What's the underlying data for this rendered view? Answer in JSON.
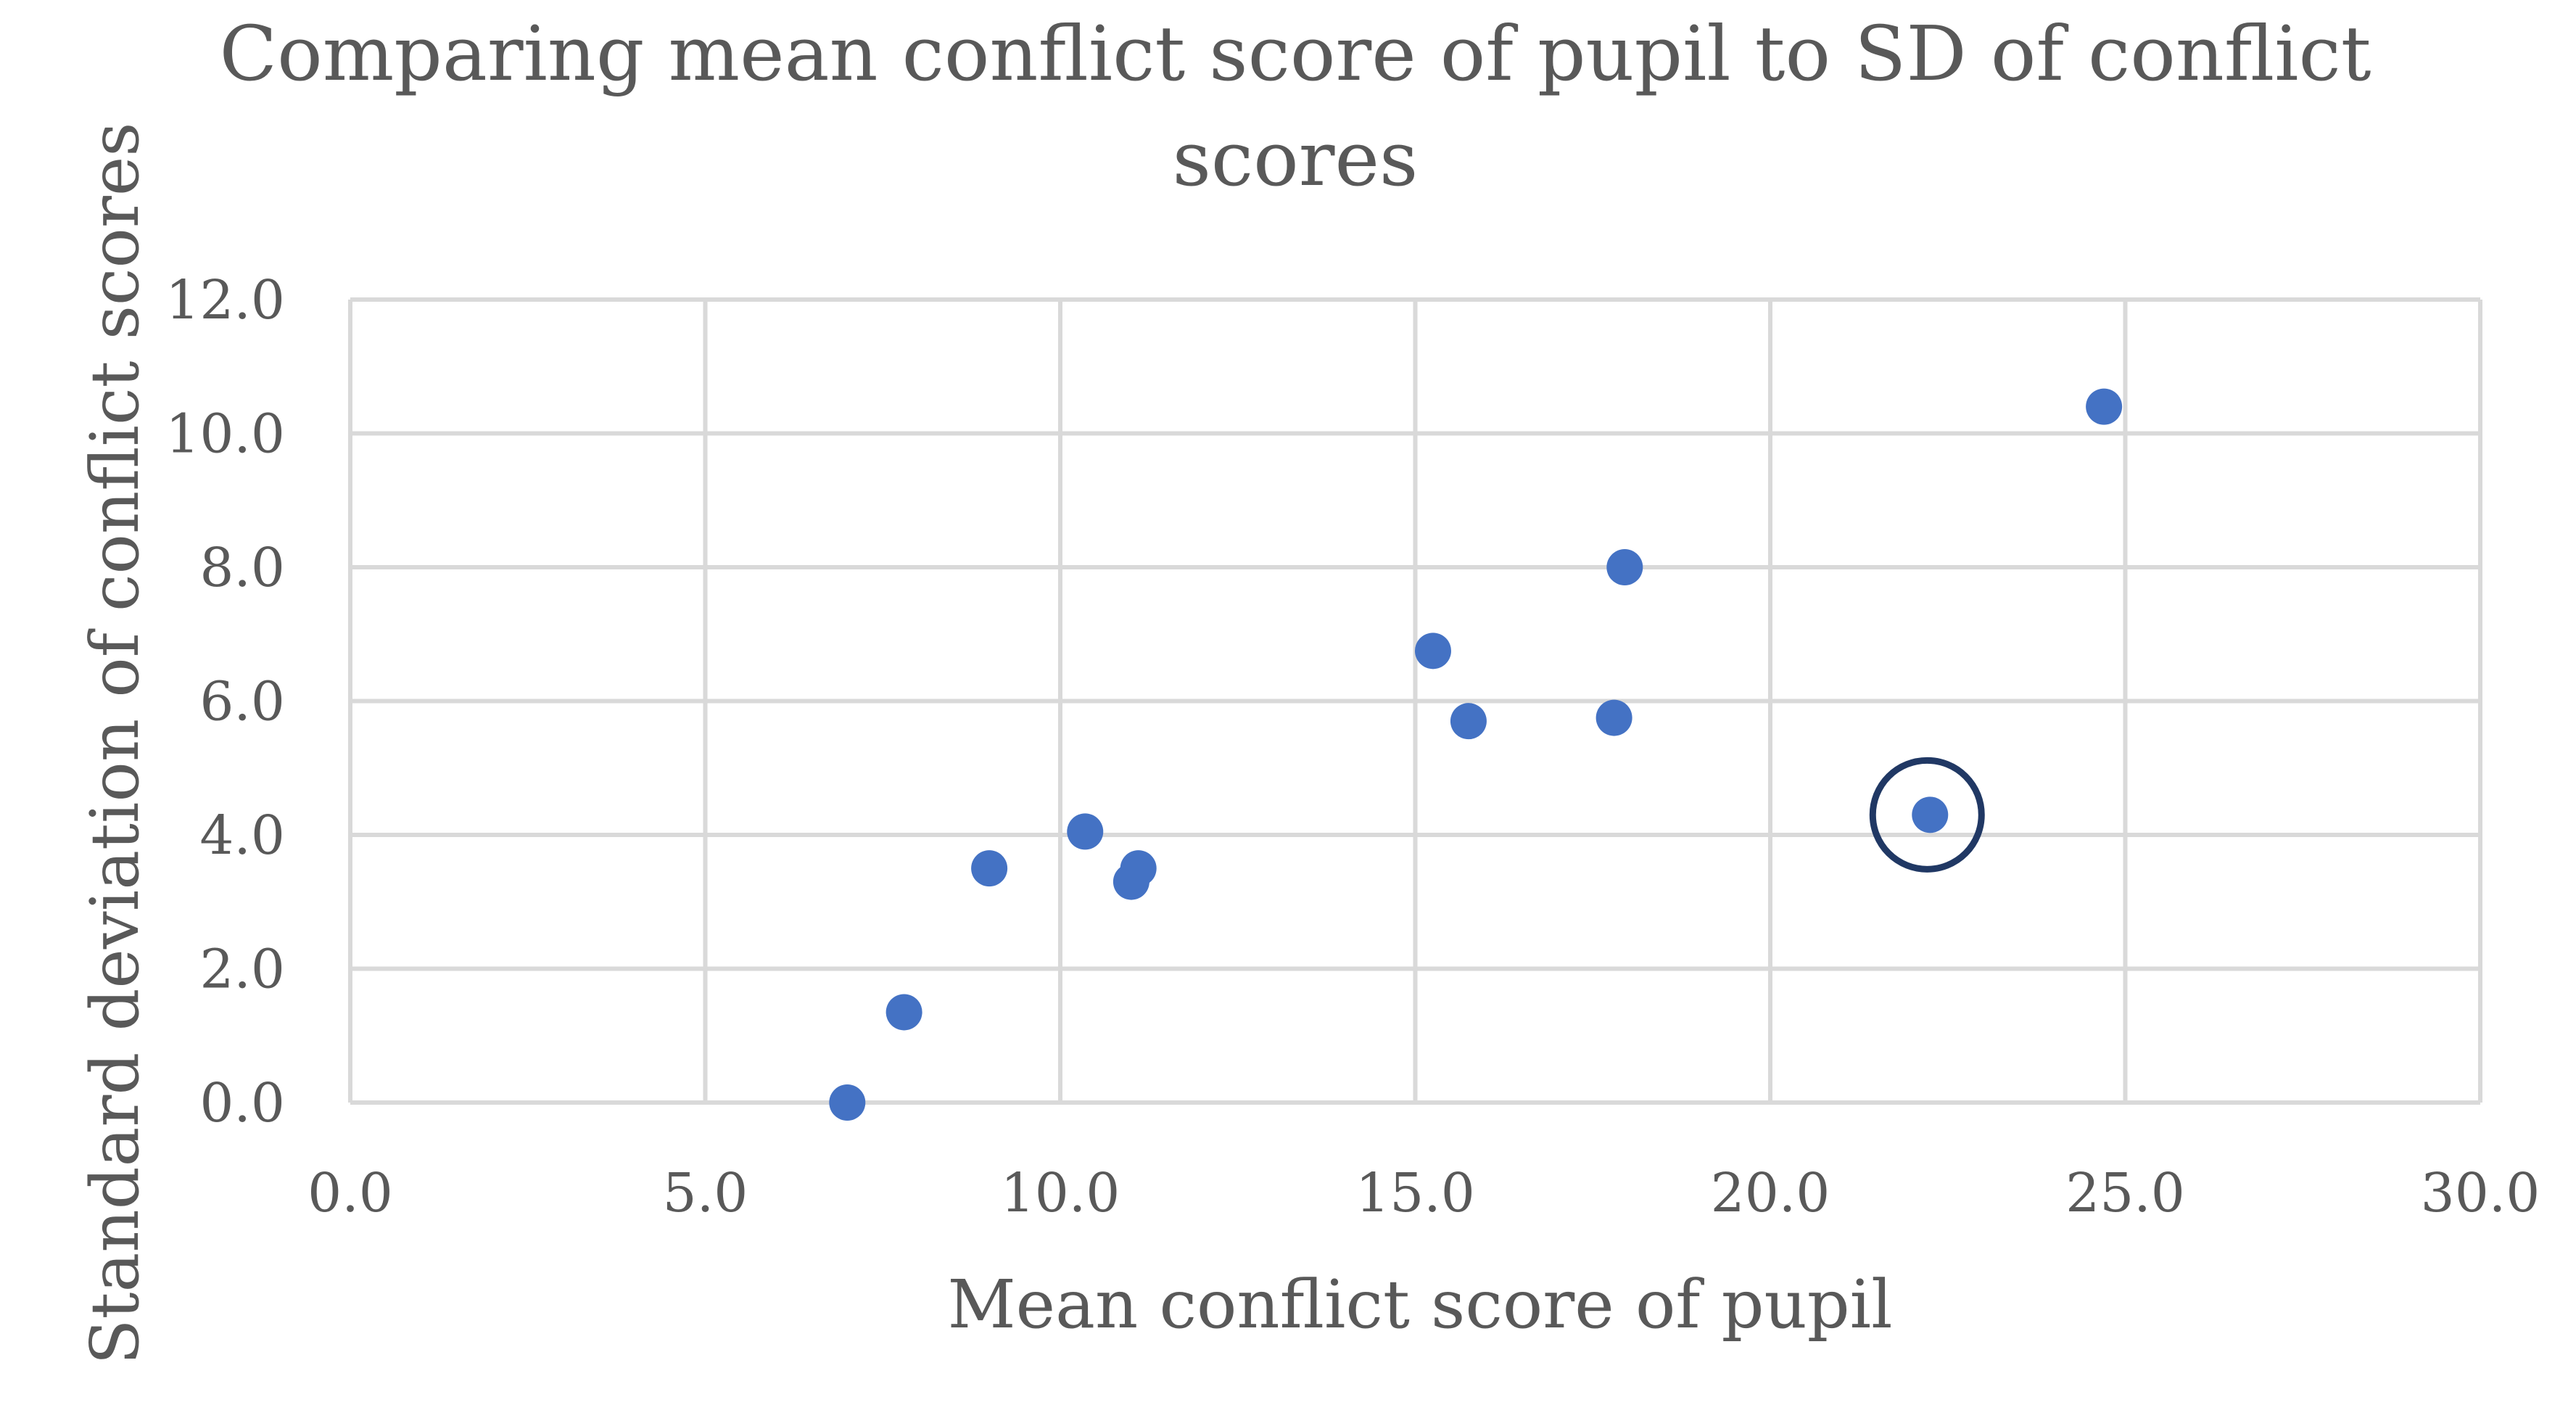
{
  "chart_data": {
    "type": "scatter",
    "title_lines": [
      "Comparing mean conflict score of pupil to SD of conflict",
      "scores"
    ],
    "xlabel": "Mean conflict score of pupil",
    "ylabel": "Standard deviation of conflict scores",
    "xlim": [
      0,
      30
    ],
    "ylim": [
      0,
      12
    ],
    "xticks": [
      0,
      5,
      10,
      15,
      20,
      25,
      30
    ],
    "yticks": [
      0,
      2,
      4,
      6,
      8,
      10,
      12
    ],
    "x_tick_labels": [
      "0.0",
      "5.0",
      "10.0",
      "15.0",
      "20.0",
      "25.0",
      "30.0"
    ],
    "y_tick_labels": [
      "0.0",
      "2.0",
      "4.0",
      "6.0",
      "8.0",
      "10.0",
      "12.0"
    ],
    "grid": true,
    "legend": "none",
    "series": [
      {
        "points": [
          {
            "x": 7.0,
            "y": 0.0
          },
          {
            "x": 7.8,
            "y": 1.35
          },
          {
            "x": 9.0,
            "y": 3.5
          },
          {
            "x": 10.35,
            "y": 4.05
          },
          {
            "x": 11.0,
            "y": 3.3
          },
          {
            "x": 11.1,
            "y": 3.5
          },
          {
            "x": 15.25,
            "y": 6.75
          },
          {
            "x": 15.75,
            "y": 5.7
          },
          {
            "x": 17.8,
            "y": 5.75
          },
          {
            "x": 17.95,
            "y": 8.0
          },
          {
            "x": 22.25,
            "y": 4.3
          },
          {
            "x": 24.7,
            "y": 10.4
          }
        ]
      }
    ],
    "highlight": {
      "x": 22.25,
      "y": 4.3,
      "note": "circled point"
    },
    "colors": {
      "point": "#4472c4",
      "highlight_ring": "#203864",
      "grid": "#d9d9d9",
      "text": "#595959"
    }
  }
}
